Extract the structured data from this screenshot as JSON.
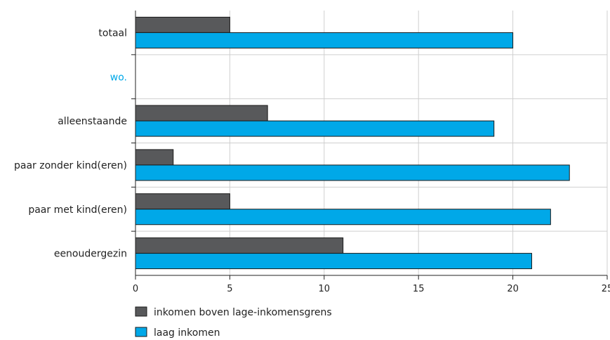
{
  "chart_data": {
    "type": "bar",
    "orientation": "horizontal",
    "colors": {
      "series0": "#58595b",
      "series1": "#00a8e8",
      "group_label": "#00a8e8"
    },
    "rows": [
      {
        "label": "totaal",
        "kind": "category",
        "values": [
          5,
          20
        ]
      },
      {
        "label": "wo.",
        "kind": "group"
      },
      {
        "label": "alleenstaande",
        "kind": "category",
        "values": [
          7,
          19
        ]
      },
      {
        "label": "paar zonder kind(eren)",
        "kind": "category",
        "values": [
          2,
          23
        ]
      },
      {
        "label": "paar met kind(eren)",
        "kind": "category",
        "values": [
          5,
          22
        ]
      },
      {
        "label": "eenoudergezin",
        "kind": "category",
        "values": [
          11,
          21
        ]
      }
    ],
    "series": [
      {
        "name": "inkomen boven lage-inkomensgrens"
      },
      {
        "name": "laag inkomen"
      }
    ],
    "xlim": [
      0,
      25
    ],
    "xticks": [
      0,
      5,
      10,
      15,
      20,
      25
    ],
    "grid": true,
    "legend_position": "bottom-left"
  }
}
